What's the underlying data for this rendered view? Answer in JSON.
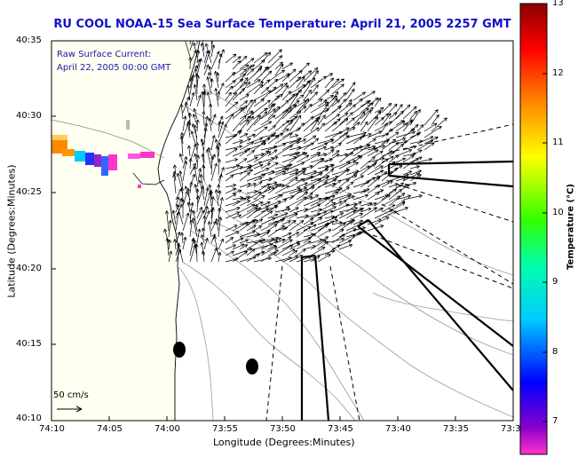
{
  "title": "RU COOL  NOAA-15  Sea Surface Temperature:  April 21, 2005 2257 GMT",
  "annotation": {
    "line1": "Raw Surface Current:",
    "line2": "April 22, 2005 00:00 GMT"
  },
  "scale_label": "50 cm/s",
  "axes": {
    "xlabel": "Longitude (Degrees:Minutes)",
    "ylabel": "Latitude (Degrees:Minutes)",
    "x_ticks": [
      "74:10",
      "74:05",
      "74:00",
      "73:55",
      "73:50",
      "73:45",
      "73:40",
      "73:35",
      "73:3"
    ],
    "y_ticks": [
      "40:35",
      "40:30",
      "40:25",
      "40:20",
      "40:15",
      "40:10"
    ]
  },
  "colorbar": {
    "label": "Temperature (°C)",
    "ticks": [
      "13",
      "12",
      "11",
      "10",
      "9",
      "8",
      "7"
    ],
    "range": [
      6.5,
      13
    ],
    "colors": [
      "#ff33cc",
      "#8800cc",
      "#0000ff",
      "#00ccff",
      "#00ffaa",
      "#33ff00",
      "#ffff00",
      "#ff8800",
      "#ff0000",
      "#8b0000"
    ]
  },
  "colors": {
    "title": "#1010c8",
    "annotation": "#1a1aa8",
    "land": "#fffff2",
    "contour": "#9a9a9a"
  }
}
